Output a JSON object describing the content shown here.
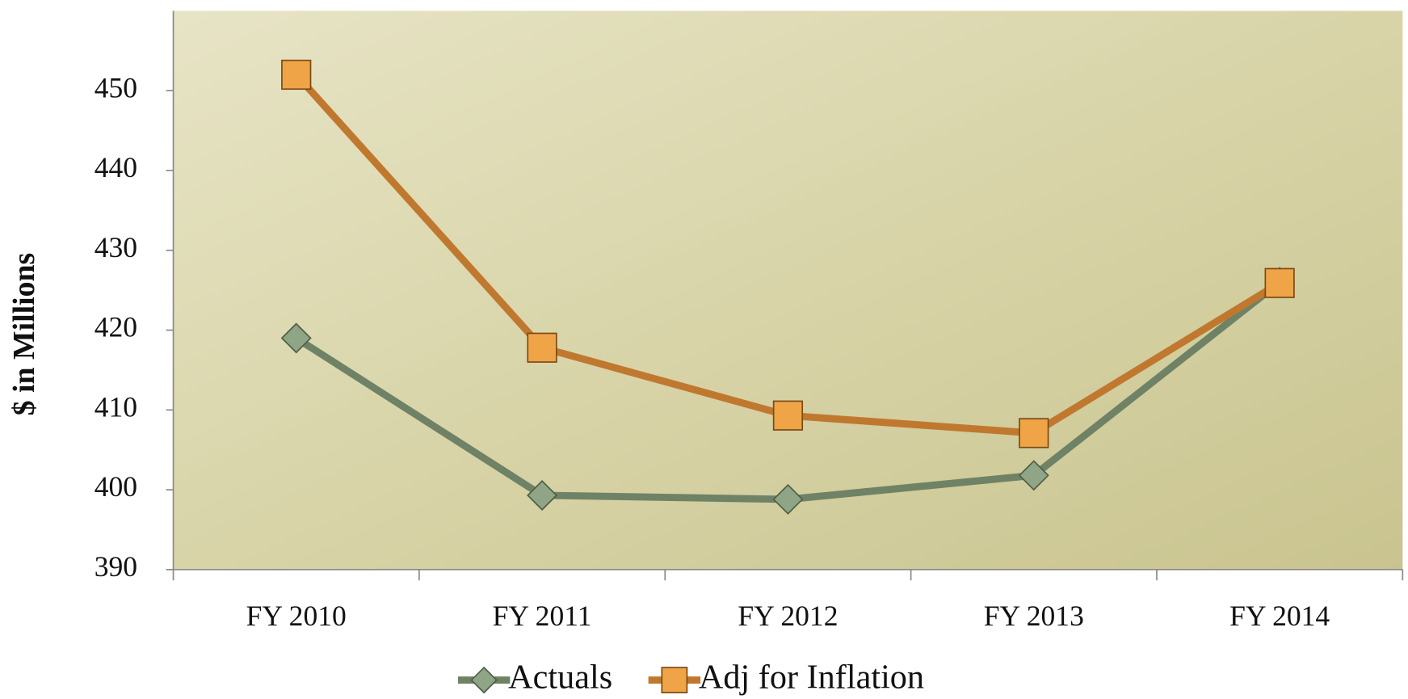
{
  "chart_data": {
    "type": "line",
    "y_label": "$ in Millions",
    "categories": [
      "FY 2010",
      "FY 2011",
      "FY 2012",
      "FY 2013",
      "FY 2014"
    ],
    "series": [
      {
        "name": "Actuals",
        "color": "#6f8266",
        "marker": "diamond",
        "values": [
          419,
          399.3,
          398.8,
          401.8,
          426
        ]
      },
      {
        "name": "Adj for Inflation",
        "color": "#c0782f",
        "marker": "square",
        "values": [
          452,
          417.8,
          409.3,
          407.1,
          425.9
        ]
      }
    ],
    "ylim": [
      390,
      460
    ],
    "yticks": [
      390,
      400,
      410,
      420,
      430,
      440,
      450
    ],
    "legend": "bottom"
  }
}
